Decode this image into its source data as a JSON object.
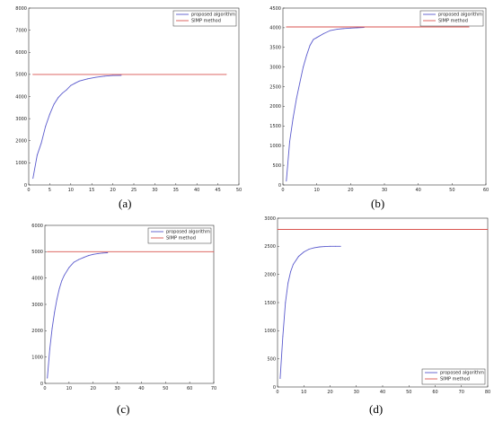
{
  "legend_labels": [
    "proposed algorithm",
    "SIMP method"
  ],
  "colors": {
    "proposed": "#5a5acd",
    "simp": "#d9534f"
  },
  "chart_data": [
    {
      "type": "line",
      "caption": "(a)",
      "xlim": [
        0,
        50
      ],
      "ylim": [
        0,
        8000
      ],
      "xticks": [
        0,
        5,
        10,
        15,
        20,
        25,
        30,
        35,
        40,
        45,
        50
      ],
      "yticks": [
        0,
        1000,
        2000,
        3000,
        4000,
        5000,
        6000,
        7000,
        8000
      ],
      "legend_position": "top-right",
      "series": [
        {
          "name": "proposed algorithm",
          "x": [
            1,
            2,
            3,
            4,
            5,
            6,
            7,
            8,
            9,
            10,
            11,
            12,
            14,
            16,
            18,
            20,
            22
          ],
          "y": [
            300,
            1350,
            1900,
            2650,
            3200,
            3650,
            3950,
            4150,
            4300,
            4500,
            4600,
            4700,
            4800,
            4870,
            4920,
            4950,
            4960
          ]
        },
        {
          "name": "SIMP method",
          "x": [
            1,
            47
          ],
          "y": [
            5000,
            5000
          ]
        }
      ]
    },
    {
      "type": "line",
      "caption": "(b)",
      "xlim": [
        0,
        60
      ],
      "ylim": [
        0,
        4500
      ],
      "xticks": [
        0,
        10,
        20,
        30,
        40,
        50,
        60
      ],
      "yticks": [
        0,
        500,
        1000,
        1500,
        2000,
        2500,
        3000,
        3500,
        4000,
        4500
      ],
      "legend_position": "top-right",
      "series": [
        {
          "name": "proposed algorithm",
          "x": [
            1,
            2,
            3,
            4,
            5,
            6,
            7,
            8,
            9,
            10,
            12,
            14,
            16,
            18,
            20,
            22,
            24
          ],
          "y": [
            100,
            1100,
            1700,
            2200,
            2600,
            3000,
            3300,
            3550,
            3700,
            3750,
            3850,
            3930,
            3960,
            3980,
            3990,
            4000,
            4010
          ]
        },
        {
          "name": "SIMP method",
          "x": [
            1,
            55
          ],
          "y": [
            4020,
            4020
          ]
        }
      ]
    },
    {
      "type": "line",
      "caption": "(c)",
      "xlim": [
        0,
        70
      ],
      "ylim": [
        0,
        6000
      ],
      "xticks": [
        0,
        10,
        20,
        30,
        40,
        50,
        60,
        70
      ],
      "yticks": [
        0,
        1000,
        2000,
        3000,
        4000,
        5000,
        6000
      ],
      "legend_position": "top-right",
      "series": [
        {
          "name": "proposed algorithm",
          "x": [
            1,
            2,
            3,
            4,
            5,
            6,
            7,
            8,
            10,
            12,
            14,
            16,
            18,
            20,
            22,
            24,
            26
          ],
          "y": [
            200,
            1300,
            2100,
            2700,
            3200,
            3600,
            3900,
            4100,
            4400,
            4600,
            4700,
            4780,
            4850,
            4900,
            4930,
            4950,
            4960
          ]
        },
        {
          "name": "SIMP method",
          "x": [
            1,
            70
          ],
          "y": [
            5000,
            5000
          ]
        }
      ]
    },
    {
      "type": "line",
      "caption": "(d)",
      "xlim": [
        0,
        80
      ],
      "ylim": [
        0,
        3000
      ],
      "xticks": [
        0,
        10,
        20,
        30,
        40,
        50,
        60,
        70,
        80
      ],
      "yticks": [
        0,
        500,
        1000,
        1500,
        2000,
        2500,
        3000
      ],
      "xtick_labels": [
        "0",
        "10",
        "20",
        "30",
        "40",
        "50",
        "60",
        "70",
        "80"
      ],
      "ytick_labels": [
        "0",
        "500",
        "1000",
        "1500",
        "2000",
        "2500",
        "3000"
      ],
      "legend_position": "bottom-right",
      "series": [
        {
          "name": "proposed algorithm",
          "x": [
            1,
            2,
            3,
            4,
            5,
            6,
            7,
            8,
            10,
            12,
            14,
            16,
            18,
            20,
            22,
            24
          ],
          "y": [
            150,
            900,
            1500,
            1850,
            2050,
            2180,
            2250,
            2320,
            2400,
            2450,
            2475,
            2490,
            2495,
            2500,
            2500,
            2500
          ]
        },
        {
          "name": "SIMP method",
          "x": [
            0,
            80
          ],
          "y": [
            2800,
            2800
          ]
        }
      ]
    }
  ]
}
